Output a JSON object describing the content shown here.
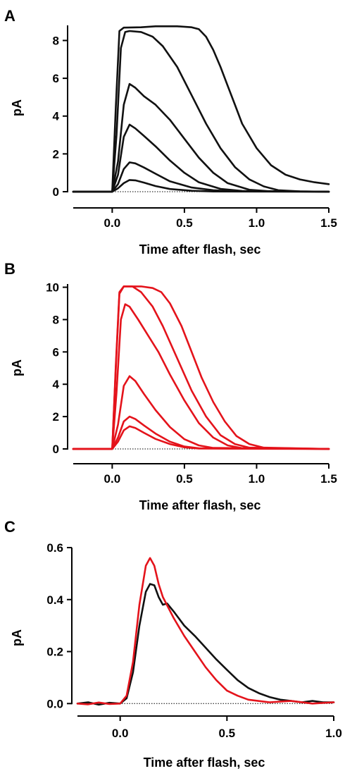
{
  "colors": {
    "control": "#111111",
    "test": "#e4131b"
  },
  "chart_data": [
    {
      "type": "line",
      "panel": "A",
      "xlabel": "Time after flash, sec",
      "ylabel": "pA",
      "xlim": [
        -0.27,
        1.5
      ],
      "ylim": [
        0,
        8.8
      ],
      "xticks": [
        0.0,
        0.5,
        1.0,
        1.5
      ],
      "xtick_labels": [
        "0.0",
        "0.5",
        "1.0",
        "1.5"
      ],
      "yticks": [
        0,
        2,
        4,
        6,
        8
      ],
      "ytick_labels": [
        "0",
        "2",
        "4",
        "6",
        "8"
      ],
      "baseline": true,
      "color": "#111111",
      "series": [
        {
          "values": [
            [
              -0.27,
              0
            ],
            [
              0,
              0
            ],
            [
              0.04,
              0.18
            ],
            [
              0.08,
              0.45
            ],
            [
              0.12,
              0.62
            ],
            [
              0.16,
              0.6
            ],
            [
              0.22,
              0.48
            ],
            [
              0.3,
              0.3
            ],
            [
              0.4,
              0.14
            ],
            [
              0.55,
              0.05
            ],
            [
              0.7,
              0.01
            ],
            [
              1.5,
              0
            ]
          ]
        },
        {
          "values": [
            [
              -0.27,
              0
            ],
            [
              0,
              0
            ],
            [
              0.04,
              0.4
            ],
            [
              0.08,
              1.2
            ],
            [
              0.12,
              1.55
            ],
            [
              0.16,
              1.5
            ],
            [
              0.22,
              1.28
            ],
            [
              0.3,
              0.95
            ],
            [
              0.4,
              0.55
            ],
            [
              0.55,
              0.22
            ],
            [
              0.7,
              0.08
            ],
            [
              0.85,
              0.02
            ],
            [
              1.5,
              0
            ]
          ]
        },
        {
          "values": [
            [
              -0.27,
              0
            ],
            [
              0,
              0
            ],
            [
              0.04,
              0.9
            ],
            [
              0.08,
              2.9
            ],
            [
              0.12,
              3.55
            ],
            [
              0.16,
              3.35
            ],
            [
              0.22,
              2.95
            ],
            [
              0.3,
              2.4
            ],
            [
              0.4,
              1.65
            ],
            [
              0.5,
              1.0
            ],
            [
              0.6,
              0.5
            ],
            [
              0.75,
              0.15
            ],
            [
              0.9,
              0.04
            ],
            [
              1.5,
              0
            ]
          ]
        },
        {
          "values": [
            [
              -0.27,
              0
            ],
            [
              0,
              0
            ],
            [
              0.04,
              1.6
            ],
            [
              0.08,
              4.6
            ],
            [
              0.12,
              5.7
            ],
            [
              0.16,
              5.5
            ],
            [
              0.22,
              5.05
            ],
            [
              0.3,
              4.6
            ],
            [
              0.4,
              3.8
            ],
            [
              0.5,
              2.8
            ],
            [
              0.6,
              1.8
            ],
            [
              0.7,
              1.0
            ],
            [
              0.8,
              0.45
            ],
            [
              0.95,
              0.1
            ],
            [
              1.1,
              0.02
            ],
            [
              1.5,
              0
            ]
          ]
        },
        {
          "values": [
            [
              -0.27,
              0
            ],
            [
              0,
              0
            ],
            [
              0.03,
              3.0
            ],
            [
              0.06,
              7.6
            ],
            [
              0.09,
              8.45
            ],
            [
              0.12,
              8.5
            ],
            [
              0.2,
              8.45
            ],
            [
              0.28,
              8.2
            ],
            [
              0.35,
              7.7
            ],
            [
              0.45,
              6.6
            ],
            [
              0.55,
              5.1
            ],
            [
              0.65,
              3.6
            ],
            [
              0.75,
              2.3
            ],
            [
              0.85,
              1.3
            ],
            [
              0.95,
              0.65
            ],
            [
              1.05,
              0.28
            ],
            [
              1.15,
              0.08
            ],
            [
              1.3,
              0.02
            ],
            [
              1.5,
              0
            ]
          ]
        },
        {
          "values": [
            [
              -0.27,
              0
            ],
            [
              0,
              0
            ],
            [
              0.025,
              4.5
            ],
            [
              0.05,
              8.5
            ],
            [
              0.08,
              8.68
            ],
            [
              0.2,
              8.7
            ],
            [
              0.3,
              8.75
            ],
            [
              0.45,
              8.75
            ],
            [
              0.55,
              8.7
            ],
            [
              0.6,
              8.6
            ],
            [
              0.65,
              8.2
            ],
            [
              0.7,
              7.5
            ],
            [
              0.75,
              6.6
            ],
            [
              0.8,
              5.6
            ],
            [
              0.85,
              4.6
            ],
            [
              0.9,
              3.6
            ],
            [
              1.0,
              2.3
            ],
            [
              1.1,
              1.4
            ],
            [
              1.2,
              0.9
            ],
            [
              1.3,
              0.65
            ],
            [
              1.4,
              0.5
            ],
            [
              1.5,
              0.4
            ]
          ]
        }
      ]
    },
    {
      "type": "line",
      "panel": "B",
      "xlabel": "Time after flash, sec",
      "ylabel": "pA",
      "xlim": [
        -0.27,
        1.5
      ],
      "ylim": [
        0,
        10.2
      ],
      "xticks": [
        0.0,
        0.5,
        1.0,
        1.5
      ],
      "xtick_labels": [
        "0.0",
        "0.5",
        "1.0",
        "1.5"
      ],
      "yticks": [
        0,
        2,
        4,
        6,
        8,
        10
      ],
      "ytick_labels": [
        "0",
        "2",
        "4",
        "6",
        "8",
        "10"
      ],
      "baseline": true,
      "color": "#e4131b",
      "series": [
        {
          "values": [
            [
              -0.27,
              0
            ],
            [
              0,
              0
            ],
            [
              0.04,
              0.45
            ],
            [
              0.08,
              1.15
            ],
            [
              0.12,
              1.4
            ],
            [
              0.16,
              1.3
            ],
            [
              0.22,
              1.0
            ],
            [
              0.3,
              0.62
            ],
            [
              0.4,
              0.3
            ],
            [
              0.5,
              0.1
            ],
            [
              0.6,
              0.02
            ],
            [
              1.5,
              0
            ]
          ]
        },
        {
          "values": [
            [
              -0.27,
              0
            ],
            [
              0,
              0
            ],
            [
              0.04,
              0.7
            ],
            [
              0.08,
              1.7
            ],
            [
              0.12,
              2.0
            ],
            [
              0.16,
              1.85
            ],
            [
              0.22,
              1.45
            ],
            [
              0.3,
              0.95
            ],
            [
              0.4,
              0.45
            ],
            [
              0.5,
              0.15
            ],
            [
              0.6,
              0.04
            ],
            [
              1.5,
              0
            ]
          ]
        },
        {
          "values": [
            [
              -0.27,
              0
            ],
            [
              0,
              0
            ],
            [
              0.04,
              1.5
            ],
            [
              0.08,
              3.9
            ],
            [
              0.12,
              4.5
            ],
            [
              0.16,
              4.2
            ],
            [
              0.22,
              3.4
            ],
            [
              0.3,
              2.4
            ],
            [
              0.4,
              1.35
            ],
            [
              0.5,
              0.6
            ],
            [
              0.6,
              0.22
            ],
            [
              0.7,
              0.06
            ],
            [
              1.5,
              0
            ]
          ]
        },
        {
          "values": [
            [
              -0.27,
              0
            ],
            [
              0,
              0
            ],
            [
              0.03,
              3.5
            ],
            [
              0.06,
              8.0
            ],
            [
              0.09,
              8.95
            ],
            [
              0.12,
              8.8
            ],
            [
              0.18,
              8.0
            ],
            [
              0.25,
              7.0
            ],
            [
              0.32,
              6.0
            ],
            [
              0.4,
              4.6
            ],
            [
              0.5,
              3.0
            ],
            [
              0.6,
              1.6
            ],
            [
              0.7,
              0.7
            ],
            [
              0.8,
              0.22
            ],
            [
              0.9,
              0.05
            ],
            [
              1.5,
              0
            ]
          ]
        },
        {
          "values": [
            [
              -0.27,
              0
            ],
            [
              0,
              0
            ],
            [
              0.025,
              5
            ],
            [
              0.05,
              9.6
            ],
            [
              0.08,
              10.05
            ],
            [
              0.14,
              10.05
            ],
            [
              0.2,
              9.7
            ],
            [
              0.28,
              8.8
            ],
            [
              0.35,
              7.6
            ],
            [
              0.45,
              5.6
            ],
            [
              0.55,
              3.6
            ],
            [
              0.65,
              2.0
            ],
            [
              0.75,
              0.85
            ],
            [
              0.85,
              0.3
            ],
            [
              0.95,
              0.08
            ],
            [
              1.5,
              0
            ]
          ]
        },
        {
          "values": [
            [
              -0.27,
              0
            ],
            [
              0,
              0
            ],
            [
              0.025,
              5.2
            ],
            [
              0.05,
              9.7
            ],
            [
              0.08,
              10.05
            ],
            [
              0.2,
              10.05
            ],
            [
              0.28,
              9.95
            ],
            [
              0.34,
              9.7
            ],
            [
              0.4,
              9.0
            ],
            [
              0.48,
              7.6
            ],
            [
              0.55,
              6.0
            ],
            [
              0.62,
              4.4
            ],
            [
              0.7,
              2.9
            ],
            [
              0.78,
              1.7
            ],
            [
              0.86,
              0.8
            ],
            [
              0.95,
              0.3
            ],
            [
              1.05,
              0.08
            ],
            [
              1.5,
              0
            ]
          ]
        }
      ]
    },
    {
      "type": "line",
      "panel": "C",
      "xlabel": "Time after flash, sec",
      "ylabel": "pA",
      "xlim": [
        -0.2,
        1.0
      ],
      "ylim": [
        -0.01,
        0.6
      ],
      "xticks": [
        0.0,
        0.5,
        1.0
      ],
      "xtick_labels": [
        "0.0",
        "0.5",
        "1.0"
      ],
      "yticks": [
        0.0,
        0.2,
        0.4,
        0.6
      ],
      "ytick_labels": [
        "0.0",
        "0.2",
        "0.4",
        "0.6"
      ],
      "baseline": true,
      "series": [
        {
          "color": "#111111",
          "values": [
            [
              -0.2,
              0
            ],
            [
              -0.15,
              0.005
            ],
            [
              -0.1,
              -0.004
            ],
            [
              -0.05,
              0.003
            ],
            [
              0.0,
              0
            ],
            [
              0.03,
              0.02
            ],
            [
              0.06,
              0.12
            ],
            [
              0.09,
              0.3
            ],
            [
              0.12,
              0.43
            ],
            [
              0.14,
              0.46
            ],
            [
              0.16,
              0.455
            ],
            [
              0.18,
              0.41
            ],
            [
              0.2,
              0.38
            ],
            [
              0.22,
              0.385
            ],
            [
              0.25,
              0.355
            ],
            [
              0.3,
              0.3
            ],
            [
              0.35,
              0.26
            ],
            [
              0.4,
              0.215
            ],
            [
              0.45,
              0.17
            ],
            [
              0.5,
              0.13
            ],
            [
              0.55,
              0.09
            ],
            [
              0.6,
              0.06
            ],
            [
              0.65,
              0.04
            ],
            [
              0.7,
              0.025
            ],
            [
              0.75,
              0.015
            ],
            [
              0.8,
              0.01
            ],
            [
              0.85,
              0.005
            ],
            [
              0.9,
              0.01
            ],
            [
              0.95,
              0.005
            ],
            [
              1.0,
              0.005
            ]
          ]
        },
        {
          "color": "#e4131b",
          "values": [
            [
              -0.2,
              0
            ],
            [
              -0.15,
              -0.003
            ],
            [
              -0.1,
              0.004
            ],
            [
              -0.05,
              -0.002
            ],
            [
              0.0,
              0
            ],
            [
              0.03,
              0.03
            ],
            [
              0.06,
              0.16
            ],
            [
              0.09,
              0.38
            ],
            [
              0.12,
              0.53
            ],
            [
              0.14,
              0.56
            ],
            [
              0.16,
              0.53
            ],
            [
              0.18,
              0.46
            ],
            [
              0.2,
              0.41
            ],
            [
              0.25,
              0.33
            ],
            [
              0.3,
              0.26
            ],
            [
              0.35,
              0.2
            ],
            [
              0.4,
              0.14
            ],
            [
              0.45,
              0.09
            ],
            [
              0.5,
              0.05
            ],
            [
              0.55,
              0.03
            ],
            [
              0.6,
              0.015
            ],
            [
              0.7,
              0.005
            ],
            [
              0.8,
              0.01
            ],
            [
              0.9,
              0.0
            ],
            [
              1.0,
              0.005
            ]
          ]
        }
      ]
    }
  ]
}
